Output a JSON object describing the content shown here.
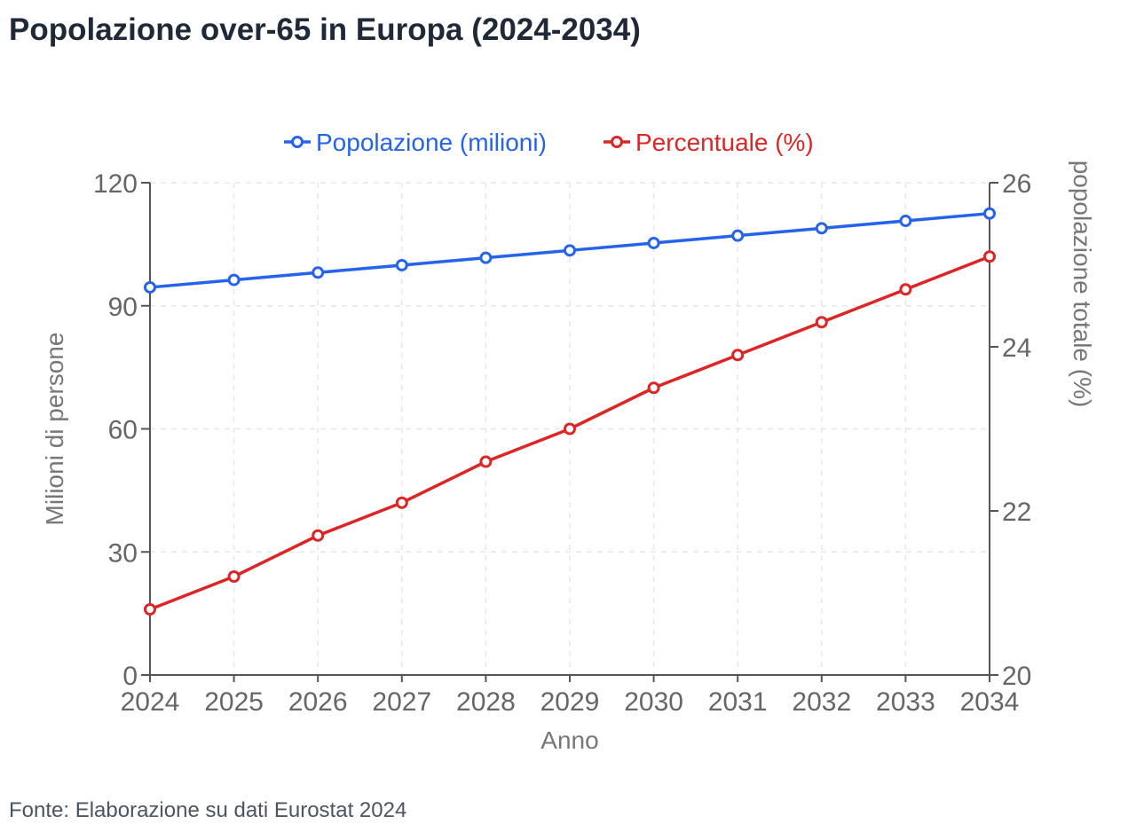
{
  "title": "Popolazione over-65 in Europa (2024-2034)",
  "source": "Fonte: Elaborazione su dati Eurostat 2024",
  "chart_data": {
    "type": "line",
    "title": "Popolazione over-65 in Europa (2024-2034)",
    "xlabel": "Anno",
    "ylabel_left": "Milioni di persone",
    "ylabel_right": "popolazione totale (%)",
    "categories": [
      "2024",
      "2025",
      "2026",
      "2027",
      "2028",
      "2029",
      "2030",
      "2031",
      "2032",
      "2033",
      "2034"
    ],
    "ylim_left": [
      0,
      120
    ],
    "yticks_left": [
      0,
      30,
      60,
      90,
      120
    ],
    "ylim_right": [
      20,
      26
    ],
    "yticks_right": [
      20,
      22,
      24,
      26
    ],
    "grid": true,
    "legend_position": "top-center",
    "series": [
      {
        "name": "Popolazione (milioni)",
        "axis": "left",
        "color": "#2563eb",
        "values": [
          94.5,
          96.3,
          98.1,
          99.9,
          101.7,
          103.5,
          105.3,
          107.1,
          108.9,
          110.7,
          112.5
        ]
      },
      {
        "name": "Percentuale (%)",
        "axis": "right",
        "color": "#dc2626",
        "values": [
          20.8,
          21.2,
          21.7,
          22.1,
          22.6,
          23.0,
          23.5,
          23.9,
          24.3,
          24.7,
          25.1
        ]
      }
    ]
  }
}
